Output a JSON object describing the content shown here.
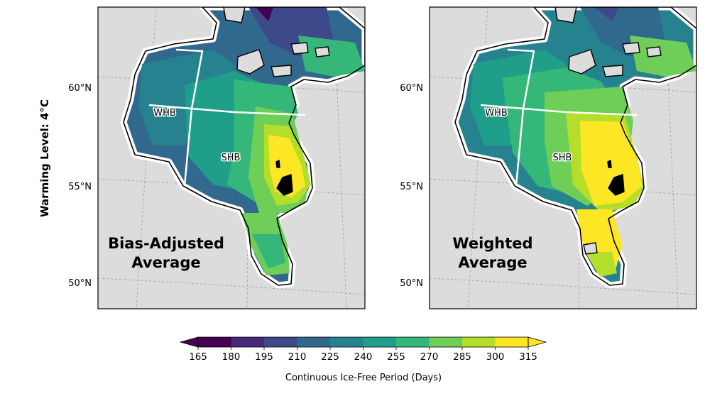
{
  "row_label": "Warming Level: 4°C",
  "lat_labels": [
    "60°N",
    "55°N",
    "50°N"
  ],
  "region_labels": [
    "WHB",
    "SHB"
  ],
  "panels": [
    {
      "title_line1": "Bias-Adjusted",
      "title_line2": "Average"
    },
    {
      "title_line1": "Weighted",
      "title_line2": "Average"
    }
  ],
  "colorbar": {
    "label": "Continuous Ice-Free Period (Days)",
    "ticks": [
      "165",
      "180",
      "195",
      "210",
      "225",
      "240",
      "255",
      "270",
      "285",
      "300",
      "315"
    ],
    "colors": [
      "#440154",
      "#482878",
      "#3e4989",
      "#31688e",
      "#26828e",
      "#1f9e89",
      "#35b779",
      "#6ece58",
      "#b5de2b",
      "#fde725"
    ],
    "extend": "both"
  },
  "colors": {
    "land": "#dcdcdc",
    "coast": "#000000",
    "boundary": "#ffffff",
    "graticule": "#9a9a9a"
  }
}
